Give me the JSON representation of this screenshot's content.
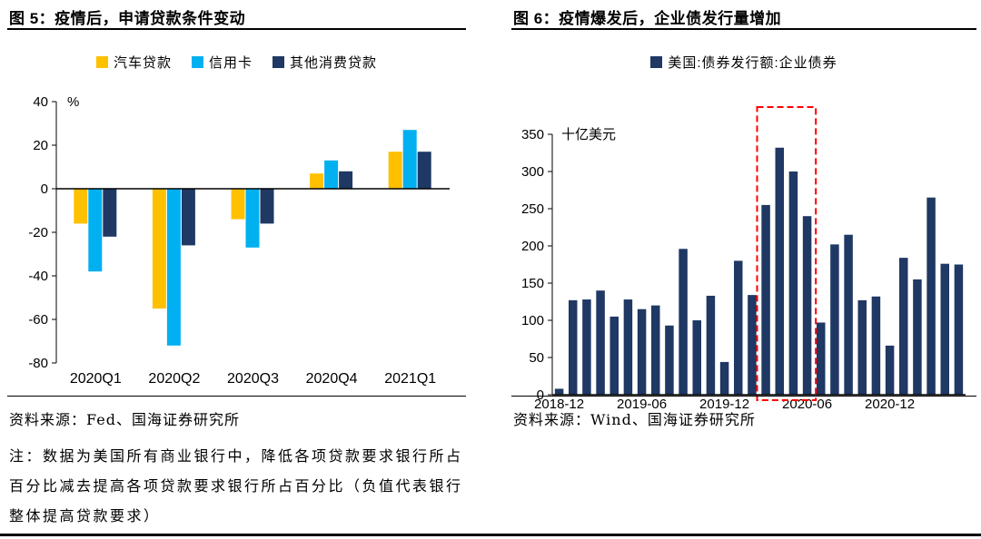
{
  "fig5": {
    "title": "图 5：疫情后，申请贷款条件变动",
    "source": "资料来源：Fed、国海证券研究所",
    "note": "注：数据为美国所有商业银行中，降低各项贷款要求银行所占百分比减去提高各项贷款要求银行所占百分比（负值代表银行整体提高贷款要求）"
  },
  "fig6": {
    "title": "图 6：疫情爆发后，企业债发行量增加",
    "source": "资料来源：Wind、国海证券研究所"
  },
  "colors": {
    "auto_loan": "#FFC000",
    "credit_card": "#00B0F0",
    "navy": "#1F3864",
    "highlight_red": "#FF0000",
    "rule_black": "#000000"
  },
  "chart_data": [
    {
      "figure": "图5",
      "type": "bar",
      "title": "疫情后，申请贷款条件变动",
      "unit_label": "%",
      "categories": [
        "2020Q1",
        "2020Q2",
        "2020Q3",
        "2020Q4",
        "2021Q1"
      ],
      "series": [
        {
          "name": "汽车贷款",
          "color": "#FFC000",
          "values": [
            -16,
            -55,
            -14,
            7,
            17
          ]
        },
        {
          "name": "信用卡",
          "color": "#00B0F0",
          "values": [
            -38,
            -72,
            -27,
            13,
            27
          ]
        },
        {
          "name": "其他消费贷款",
          "color": "#1F3864",
          "values": [
            -22,
            -26,
            -16,
            8,
            17
          ]
        }
      ],
      "ylim": [
        -80,
        40
      ],
      "ytick_step": 20,
      "legend_position": "top",
      "grid": false
    },
    {
      "figure": "图6",
      "type": "bar",
      "title": "疫情爆发后，企业债发行量增加",
      "unit_label": "十亿美元",
      "series_name": "美国:债券发行额:企业债券",
      "color": "#1F3864",
      "x": [
        "2018-12",
        "2019-01",
        "2019-02",
        "2019-03",
        "2019-04",
        "2019-05",
        "2019-06",
        "2019-07",
        "2019-08",
        "2019-09",
        "2019-10",
        "2019-11",
        "2019-12",
        "2020-01",
        "2020-02",
        "2020-03",
        "2020-04",
        "2020-05",
        "2020-06",
        "2020-07",
        "2020-08",
        "2020-09",
        "2020-10",
        "2020-11",
        "2020-12",
        "2021-01",
        "2021-02",
        "2021-03",
        "2021-04",
        "2021-05"
      ],
      "values": [
        8,
        127,
        128,
        140,
        105,
        128,
        115,
        120,
        93,
        196,
        100,
        133,
        44,
        180,
        134,
        255,
        332,
        300,
        240,
        97,
        202,
        215,
        127,
        132,
        66,
        184,
        155,
        265,
        176,
        175
      ],
      "ylim": [
        0,
        350
      ],
      "ytick_step": 50,
      "x_tick_interval": 6,
      "highlight_box": {
        "from": "2020-03",
        "to": "2020-06",
        "from_index": 15,
        "to_index": 18,
        "color": "#FF0000",
        "style": "dashed"
      },
      "legend_position": "top",
      "grid": false
    }
  ]
}
